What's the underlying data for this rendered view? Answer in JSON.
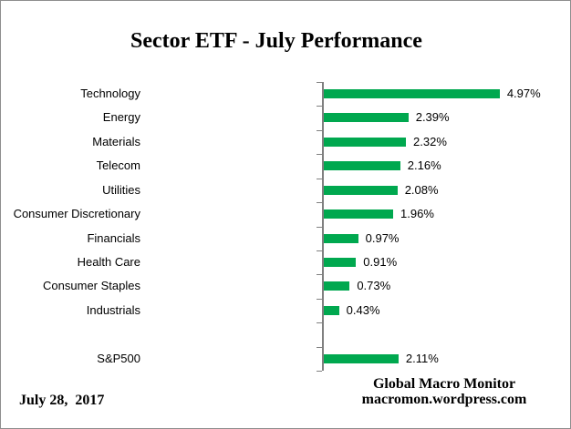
{
  "title": "Sector ETF - July Performance",
  "footer": {
    "date": "July 28,  2017",
    "credit_line1": "Global Macro Monitor",
    "credit_line2": "macromon.wordpress.com"
  },
  "chart_data": {
    "type": "bar",
    "orientation": "horizontal",
    "title": "Sector ETF - July Performance",
    "categories": [
      "Technology",
      "Energy",
      "Materials",
      "Telecom",
      "Utilities",
      "Consumer Discretionary",
      "Financials",
      "Health Care",
      "Consumer Staples",
      "Industrials",
      "S&P500"
    ],
    "values": [
      4.97,
      2.39,
      2.32,
      2.16,
      2.08,
      1.96,
      0.97,
      0.91,
      0.73,
      0.43,
      2.11
    ],
    "value_labels": [
      "4.97%",
      "2.39%",
      "2.32%",
      "2.16%",
      "2.08%",
      "1.96%",
      "0.97%",
      "0.91%",
      "0.73%",
      "0.43%",
      "2.11%"
    ],
    "gap_row_before_last_category": true,
    "xlabel": "",
    "ylabel": "",
    "xlim": [
      0,
      6.0
    ],
    "grid": false,
    "legend": false,
    "bar_color": "#00A84F",
    "axis_color": "#808080"
  }
}
